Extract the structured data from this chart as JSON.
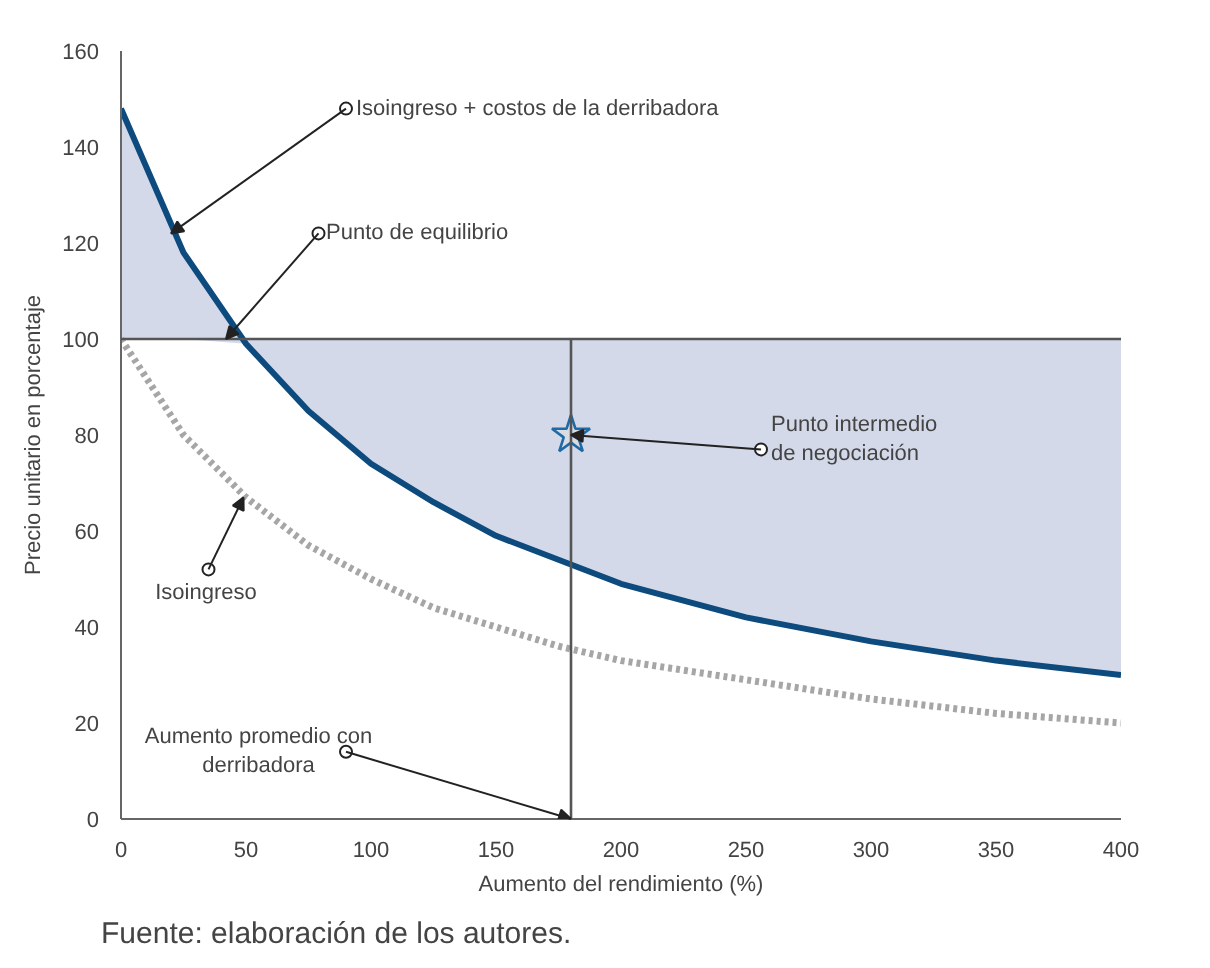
{
  "chart_data": {
    "type": "line",
    "xlabel": "Aumento del rendimiento (%)",
    "ylabel": "Precio unitario en porcentaje",
    "xlim": [
      0,
      400
    ],
    "xticks": [
      0,
      50,
      100,
      150,
      200,
      250,
      300,
      350,
      400
    ],
    "ylim": [
      0,
      160
    ],
    "yticks": [
      0,
      20,
      40,
      60,
      80,
      100,
      120,
      140,
      160
    ],
    "x": [
      0,
      25,
      50,
      75,
      100,
      125,
      150,
      175,
      200,
      250,
      300,
      350,
      400
    ],
    "series": [
      {
        "color": "#0d4a7d",
        "values": [
          148,
          118,
          99,
          85,
          74,
          66,
          59,
          54,
          49,
          42,
          37,
          33,
          30
        ],
        "lower": [
          100,
          100,
          99,
          85,
          74,
          66,
          59,
          54,
          49,
          42,
          37,
          33,
          30
        ],
        "upper": [
          148,
          118,
          100,
          100,
          100,
          100,
          100,
          100,
          100,
          100,
          100,
          100,
          100
        ],
        "line_style": "solid"
      },
      {
        "color": "#a6a6a6",
        "values": [
          100,
          80,
          67,
          57,
          50,
          44,
          40,
          36,
          33,
          29,
          25,
          22,
          20
        ],
        "line_style": "dotted"
      },
      {
        "type": "scatter",
        "color": "#1f6aa5",
        "x": [
          180
        ],
        "values": [
          80
        ],
        "marker": "star"
      }
    ],
    "ref_lines": [
      {
        "axis": "y",
        "value": 100,
        "color": "#555555"
      },
      {
        "axis": "x",
        "value": 180,
        "color": "#555555"
      }
    ],
    "annotations": [
      {
        "text": "Isoingreso + costos de la derribadora",
        "x": 20,
        "y": 122
      },
      {
        "text": "Punto de equilibrio",
        "x": 42,
        "y": 100
      },
      {
        "text": "Isoingreso",
        "x": 50,
        "y": 67
      },
      {
        "text": "Punto intermedio\nde negociación",
        "x": 180,
        "y": 80
      },
      {
        "text": "Aumento promedio con\nderribadora",
        "x": 180,
        "y": 0
      },
      "Fuente: elaboración de los autores."
    ],
    "grid": false
  }
}
